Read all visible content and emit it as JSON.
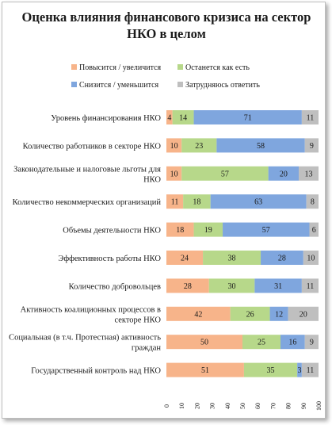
{
  "chart_data": {
    "type": "bar",
    "stacked": true,
    "orientation": "horizontal",
    "title_lines": [
      "Оценка влияния финансового кризиса на сектор",
      "НКО в целом"
    ],
    "legend": {
      "position": "top"
    },
    "categories": [
      [
        "Уровень финансирования НКО"
      ],
      [
        "Количество работников в секторе НКО"
      ],
      [
        "Законодательные и налоговые льготы для",
        "НКО"
      ],
      [
        "Количество некоммерческих организаций"
      ],
      [
        "Объемы деятельности НКО"
      ],
      [
        "Эффективность работы НКО"
      ],
      [
        "Количество добровольцев"
      ],
      [
        "Активность коалиционных процессов в",
        "секторе НКО"
      ],
      [
        "Социальная (в т.ч. Протестная) активность",
        "граждан"
      ],
      [
        "Государственный контроль над НКО"
      ]
    ],
    "series": [
      {
        "name": "Повысится / увеличится",
        "color": "#f7b48a",
        "values": [
          4,
          10,
          10,
          11,
          18,
          24,
          28,
          42,
          50,
          51
        ]
      },
      {
        "name": "Останется как есть",
        "color": "#b7d88a",
        "values": [
          14,
          23,
          57,
          18,
          19,
          38,
          30,
          26,
          25,
          35
        ]
      },
      {
        "name": "Снизится / уменьшится",
        "color": "#7fa6de",
        "values": [
          71,
          58,
          20,
          63,
          57,
          28,
          31,
          12,
          16,
          3
        ]
      },
      {
        "name": "Затрудняюсь ответить",
        "color": "#bfbfbf",
        "values": [
          11,
          9,
          13,
          8,
          6,
          10,
          11,
          20,
          9,
          11
        ]
      }
    ],
    "xlim": [
      0,
      100
    ],
    "xticks": [
      "0",
      "10",
      "20",
      "30",
      "40",
      "50",
      "60",
      "70",
      "80",
      "90",
      "100"
    ],
    "grid": false
  }
}
